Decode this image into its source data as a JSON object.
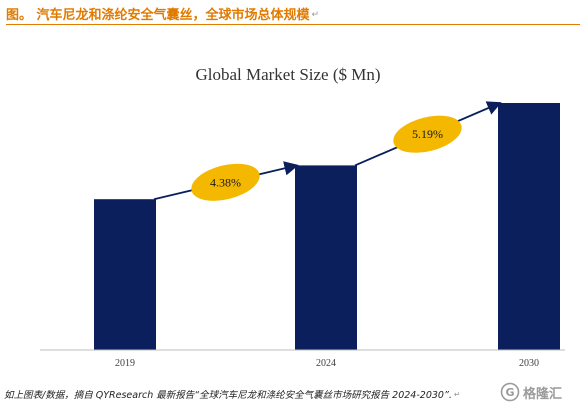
{
  "figure": {
    "heading": "图。 汽车尼龙和涤纶安全气囊丝，全球市场总体规模",
    "source": "如上图表/数据，摘自 QYResearch 最新报告“全球汽车尼龙和涤纶安全气囊丝市场研究报告 2024-2030”.",
    "paragraph_mark": "↵",
    "watermark": "格隆汇",
    "watermark_logo": "G"
  },
  "chart_data": {
    "type": "bar",
    "title": "Global Market Size ($ Mn)",
    "categories": [
      "2019",
      "2024",
      "2030"
    ],
    "values": [
      58,
      71,
      95
    ],
    "ylim": [
      0,
      100
    ],
    "grid": false,
    "bar_color": "#0a1f5c",
    "annotations": [
      {
        "text": "4.38%",
        "from": "2019",
        "to": "2024"
      },
      {
        "text": "5.19%",
        "from": "2024",
        "to": "2030"
      }
    ],
    "annotation_color": "#f5b800",
    "arrow_color": "#0a1f5c"
  }
}
